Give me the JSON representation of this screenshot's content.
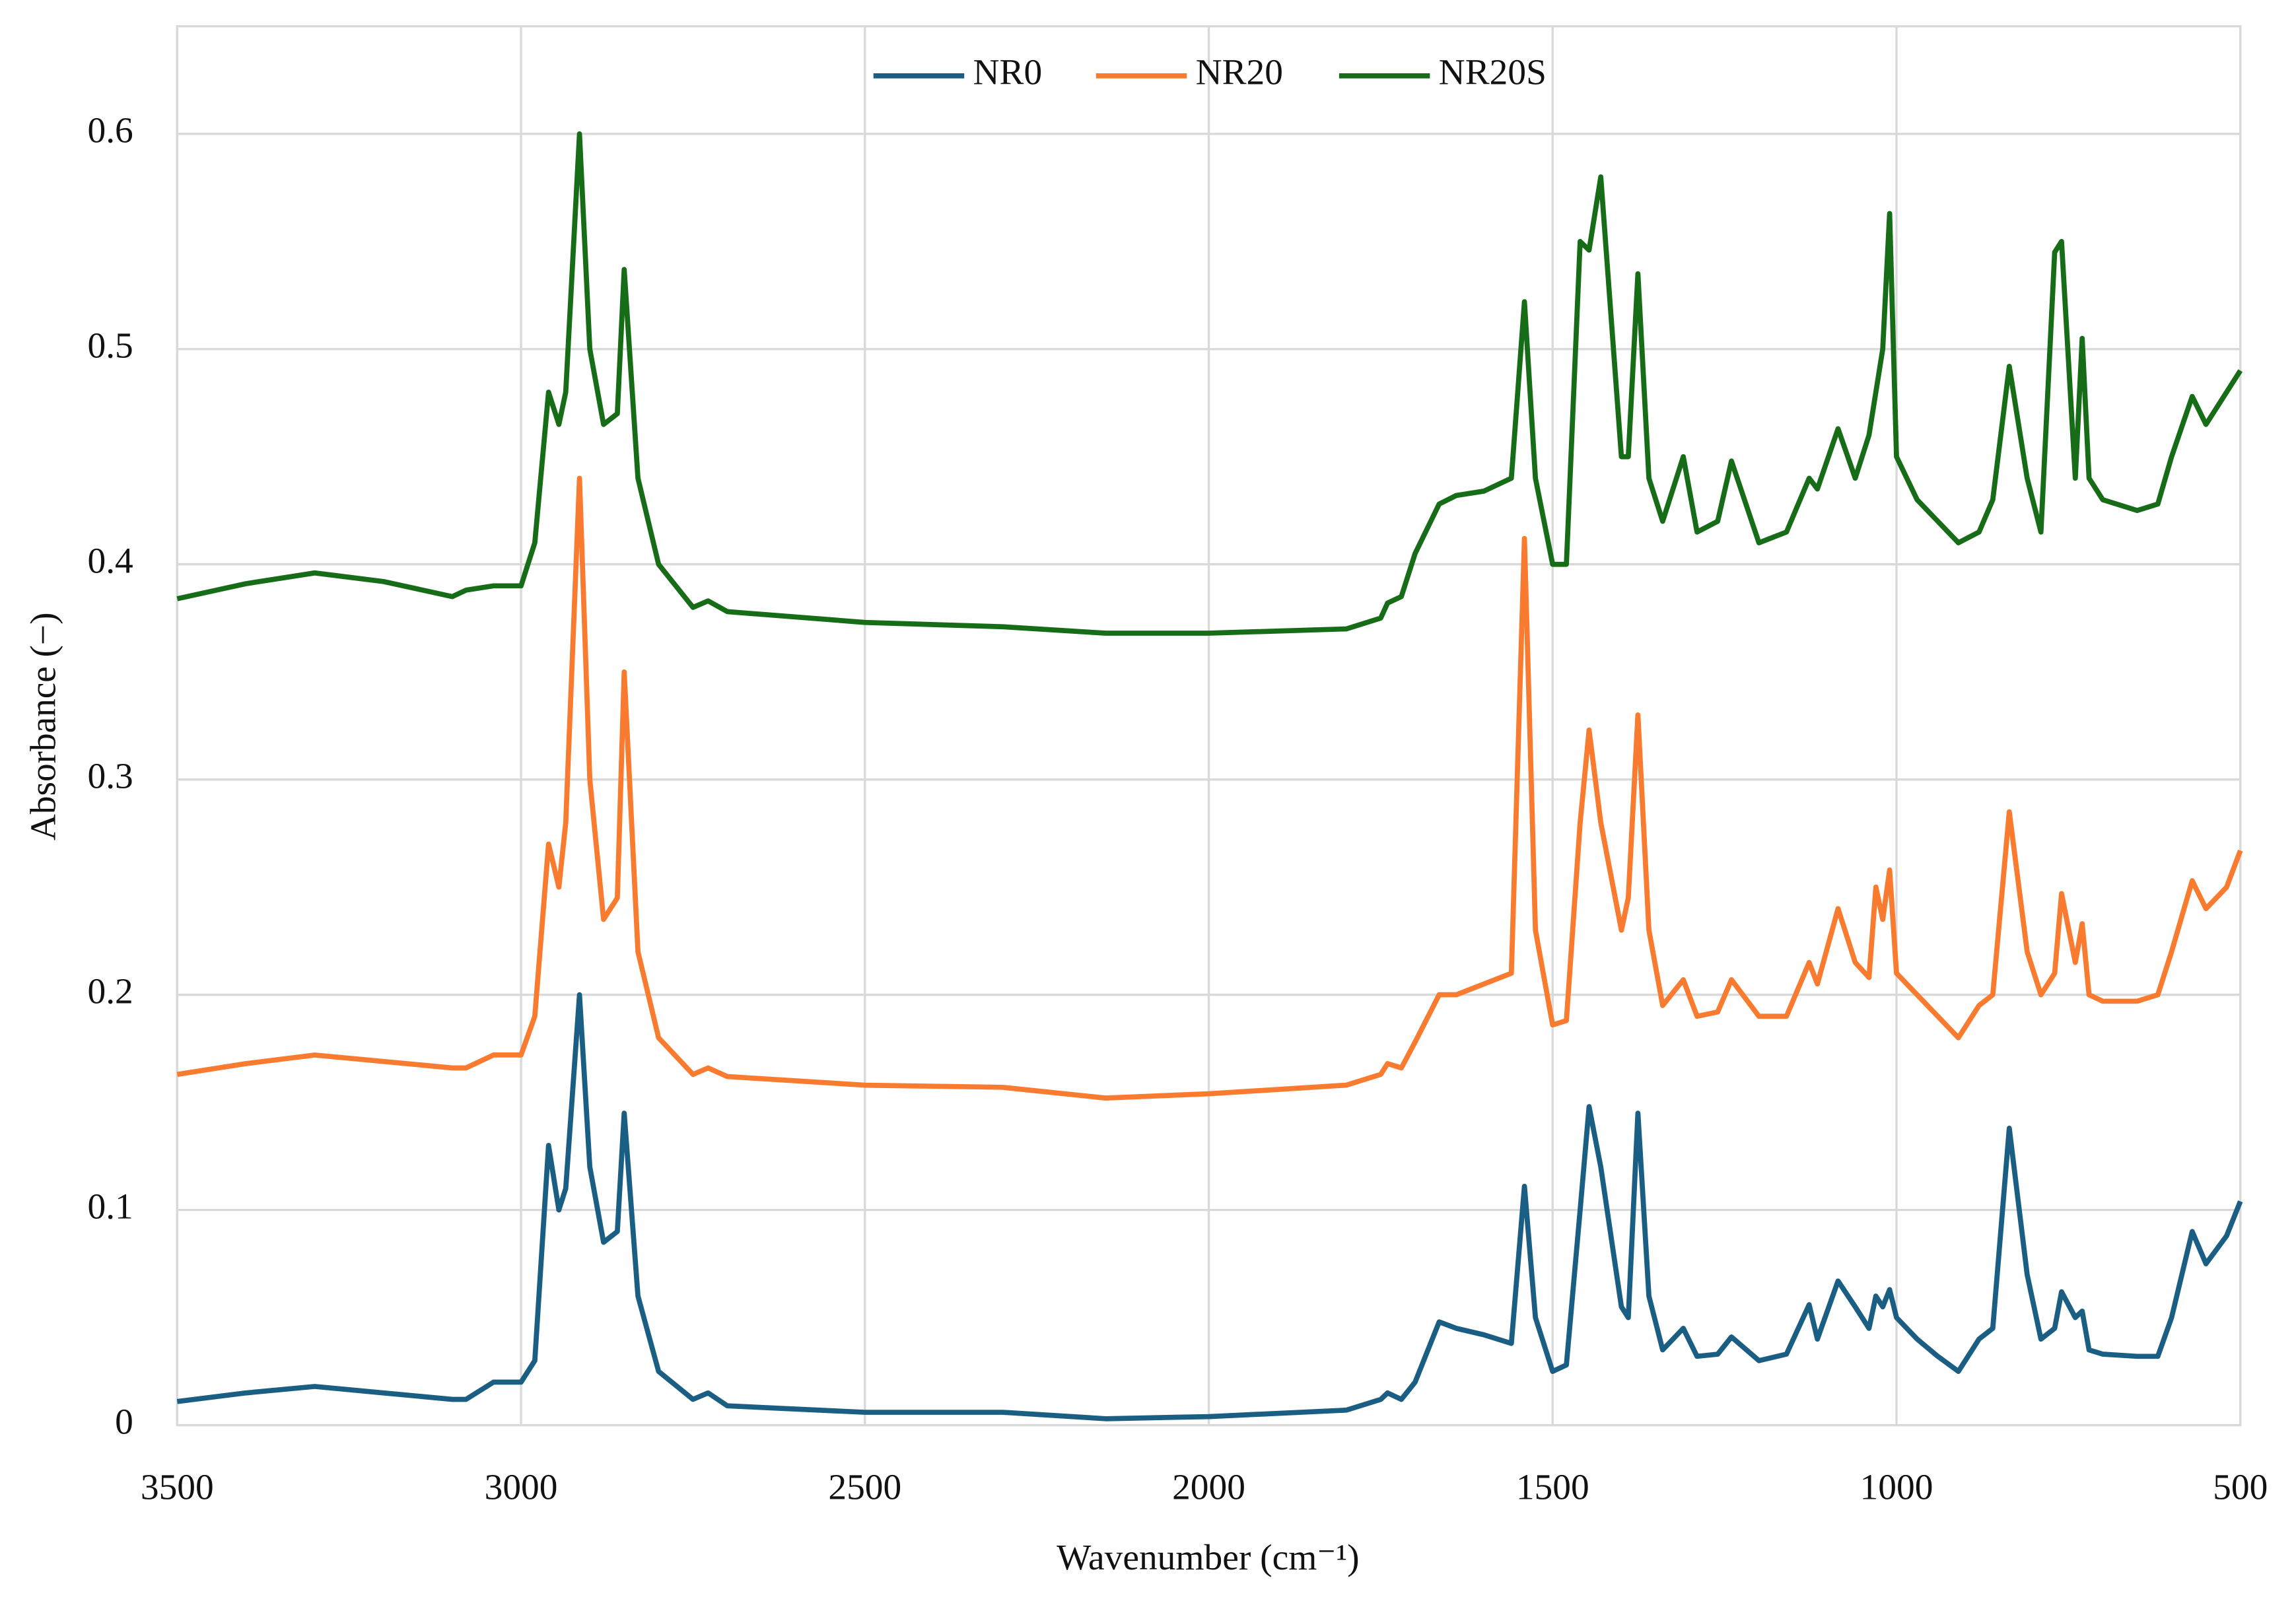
{
  "chart_data": {
    "type": "line",
    "x_label": "Wavenumber (cm⁻¹)",
    "y_label": "Absorbance (−)",
    "x": [
      3500,
      3400,
      3300,
      3200,
      3100,
      3080,
      3040,
      3000,
      2980,
      2960,
      2945,
      2935,
      2915,
      2900,
      2880,
      2860,
      2850,
      2830,
      2800,
      2750,
      2728,
      2700,
      2500,
      2300,
      2150,
      2000,
      1800,
      1750,
      1740,
      1720,
      1700,
      1665,
      1640,
      1600,
      1560,
      1541,
      1525,
      1500,
      1480,
      1460,
      1447,
      1430,
      1400,
      1390,
      1376,
      1360,
      1340,
      1310,
      1290,
      1260,
      1240,
      1200,
      1160,
      1127,
      1115,
      1085,
      1060,
      1040,
      1030,
      1020,
      1010,
      1000,
      970,
      940,
      910,
      880,
      860,
      836,
      810,
      790,
      770,
      760,
      740,
      730,
      720,
      700,
      650,
      620,
      600,
      570,
      550,
      520,
      500
    ],
    "series": [
      {
        "name": "NR0",
        "color": "#1b5e83",
        "values": [
          0.011,
          0.015,
          0.018,
          0.015,
          0.012,
          0.012,
          0.02,
          0.02,
          0.03,
          0.13,
          0.1,
          0.11,
          0.2,
          0.12,
          0.085,
          0.09,
          0.145,
          0.06,
          0.025,
          0.012,
          0.015,
          0.009,
          0.006,
          0.006,
          0.003,
          0.004,
          0.007,
          0.012,
          0.015,
          0.012,
          0.02,
          0.048,
          0.045,
          0.042,
          0.038,
          0.111,
          0.05,
          0.025,
          0.028,
          0.1,
          0.148,
          0.12,
          0.055,
          0.05,
          0.145,
          0.06,
          0.035,
          0.045,
          0.032,
          0.033,
          0.041,
          0.03,
          0.033,
          0.056,
          0.04,
          0.067,
          0.055,
          0.045,
          0.06,
          0.055,
          0.063,
          0.05,
          0.04,
          0.032,
          0.025,
          0.04,
          0.045,
          0.138,
          0.07,
          0.04,
          0.045,
          0.062,
          0.05,
          0.053,
          0.035,
          0.033,
          0.032,
          0.032,
          0.05,
          0.09,
          0.075,
          0.088,
          0.104
        ]
      },
      {
        "name": "NR20",
        "color": "#f97b30",
        "values": [
          0.163,
          0.168,
          0.172,
          0.169,
          0.166,
          0.166,
          0.172,
          0.172,
          0.19,
          0.27,
          0.25,
          0.28,
          0.44,
          0.3,
          0.235,
          0.245,
          0.35,
          0.22,
          0.18,
          0.163,
          0.166,
          0.162,
          0.158,
          0.157,
          0.152,
          0.154,
          0.158,
          0.163,
          0.168,
          0.166,
          0.178,
          0.2,
          0.2,
          0.205,
          0.21,
          0.412,
          0.23,
          0.186,
          0.188,
          0.28,
          0.323,
          0.28,
          0.23,
          0.245,
          0.33,
          0.23,
          0.195,
          0.207,
          0.19,
          0.192,
          0.207,
          0.19,
          0.19,
          0.215,
          0.205,
          0.24,
          0.215,
          0.208,
          0.25,
          0.235,
          0.258,
          0.21,
          0.2,
          0.19,
          0.18,
          0.195,
          0.2,
          0.285,
          0.22,
          0.2,
          0.21,
          0.247,
          0.215,
          0.233,
          0.2,
          0.197,
          0.197,
          0.2,
          0.22,
          0.253,
          0.24,
          0.25,
          0.267
        ]
      },
      {
        "name": "NR20S",
        "color": "#176c18",
        "values": [
          0.384,
          0.391,
          0.396,
          0.392,
          0.385,
          0.388,
          0.39,
          0.39,
          0.41,
          0.48,
          0.465,
          0.48,
          0.6,
          0.5,
          0.465,
          0.47,
          0.537,
          0.44,
          0.4,
          0.38,
          0.383,
          0.378,
          0.373,
          0.371,
          0.368,
          0.368,
          0.37,
          0.375,
          0.382,
          0.385,
          0.405,
          0.428,
          0.432,
          0.434,
          0.44,
          0.522,
          0.44,
          0.4,
          0.4,
          0.55,
          0.546,
          0.58,
          0.45,
          0.45,
          0.535,
          0.44,
          0.42,
          0.45,
          0.415,
          0.42,
          0.448,
          0.41,
          0.415,
          0.44,
          0.435,
          0.463,
          0.44,
          0.46,
          0.48,
          0.5,
          0.563,
          0.45,
          0.43,
          0.42,
          0.41,
          0.415,
          0.43,
          0.492,
          0.44,
          0.415,
          0.545,
          0.55,
          0.44,
          0.505,
          0.44,
          0.43,
          0.425,
          0.428,
          0.45,
          0.478,
          0.465,
          0.48,
          0.49
        ]
      }
    ],
    "xlim": [
      3500,
      500
    ],
    "xticks": [
      3500,
      3000,
      2500,
      2000,
      1500,
      1000,
      500
    ],
    "ylim": [
      0,
      0.65
    ],
    "yticks": [
      0,
      0.1,
      0.2,
      0.3,
      0.4,
      0.5,
      0.6
    ],
    "grid": true,
    "legend": "upper center"
  }
}
